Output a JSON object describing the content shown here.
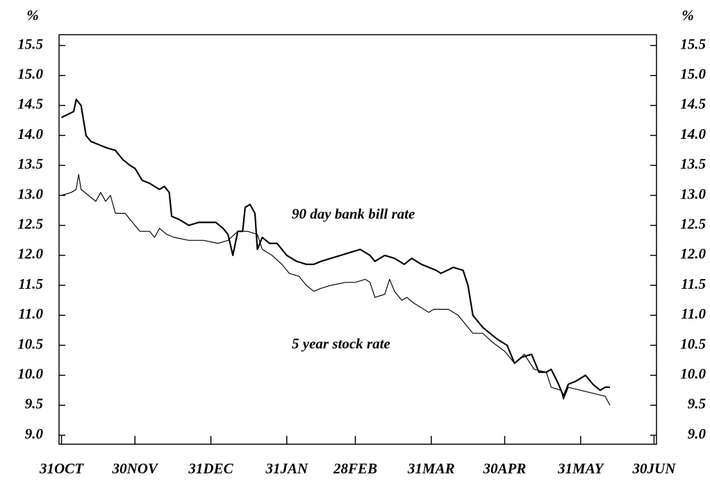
{
  "chart_data": {
    "type": "line",
    "y_unit_left": "%",
    "y_unit_right": "%",
    "annotations": [
      "90 day bank bill rate",
      "5 year stock rate"
    ],
    "xlim": [
      -1,
      243
    ],
    "xticks": [
      {
        "value": 0,
        "label": "31OCT"
      },
      {
        "value": 30,
        "label": "30NOV"
      },
      {
        "value": 61,
        "label": "31DEC"
      },
      {
        "value": 92,
        "label": "31JAN"
      },
      {
        "value": 120,
        "label": "28FEB"
      },
      {
        "value": 151,
        "label": "31MAR"
      },
      {
        "value": 181,
        "label": "30APR"
      },
      {
        "value": 212,
        "label": "31MAY"
      },
      {
        "value": 242,
        "label": "30JUN"
      }
    ],
    "ylim": [
      8.85,
      15.68
    ],
    "yticks": [
      {
        "value": 9,
        "label": "9.0"
      },
      9.5,
      {
        "value": 10,
        "label": "10.0"
      },
      10.5,
      {
        "value": 11,
        "label": "11.0"
      },
      11.5,
      {
        "value": 12,
        "label": "12.0"
      },
      12.5,
      {
        "value": 13,
        "label": "13.0"
      },
      13.5,
      {
        "value": 14,
        "label": "14.0"
      },
      14.5,
      {
        "value": 15,
        "label": "15.0"
      },
      15.5
    ],
    "y2lim": [
      8.85,
      15.68
    ],
    "y2ticks": [
      {
        "value": 9,
        "label": "9.0"
      },
      9.5,
      {
        "value": 10,
        "label": "10.0"
      },
      10.5,
      {
        "value": 11,
        "label": "11.0"
      },
      11.5,
      {
        "value": 12,
        "label": "12.0"
      },
      12.5,
      {
        "value": 13,
        "label": "13.0"
      },
      13.5,
      {
        "value": 14,
        "label": "14.0"
      },
      14.5,
      {
        "value": 15,
        "label": "15.0"
      },
      15.5
    ],
    "series": [
      {
        "color": "#000",
        "width": 2.2,
        "x": [
          0,
          5,
          6,
          8,
          10,
          12,
          15,
          18,
          22,
          25,
          28,
          30,
          33,
          36,
          40,
          42,
          44,
          45,
          48,
          52,
          56,
          60,
          63,
          66,
          68,
          70,
          72,
          74,
          75,
          77,
          79,
          80,
          82,
          85,
          88,
          92,
          96,
          100,
          103,
          106,
          110,
          114,
          118,
          122,
          126,
          128,
          132,
          136,
          140,
          143,
          147,
          150,
          153,
          155,
          160,
          164,
          166,
          168,
          172,
          175,
          178,
          182,
          185,
          188,
          192,
          195,
          198,
          200,
          203,
          205,
          207,
          210,
          214,
          217,
          220,
          222,
          224
        ],
        "values": [
          14.3,
          14.4,
          14.6,
          14.5,
          14.0,
          13.9,
          13.85,
          13.8,
          13.75,
          13.6,
          13.5,
          13.45,
          13.25,
          13.2,
          13.1,
          13.15,
          13.05,
          12.65,
          12.6,
          12.5,
          12.55,
          12.55,
          12.55,
          12.45,
          12.35,
          12.0,
          12.4,
          12.4,
          12.8,
          12.85,
          12.7,
          12.1,
          12.3,
          12.2,
          12.2,
          12.0,
          11.9,
          11.85,
          11.85,
          11.9,
          11.95,
          12.0,
          12.05,
          12.1,
          12.0,
          11.9,
          12.0,
          11.95,
          11.85,
          11.95,
          11.85,
          11.8,
          11.75,
          11.7,
          11.8,
          11.75,
          11.5,
          11.0,
          10.8,
          10.7,
          10.6,
          10.5,
          10.2,
          10.3,
          10.35,
          10.05,
          10.05,
          10.1,
          9.85,
          9.65,
          9.85,
          9.9,
          10.0,
          9.85,
          9.75,
          9.8,
          9.8
        ]
      },
      {
        "color": "#000",
        "width": 1.2,
        "axis": "y2",
        "x": [
          0,
          4,
          6,
          7,
          8,
          11,
          14,
          16,
          18,
          20,
          22,
          26,
          28,
          32,
          36,
          38,
          40,
          43,
          46,
          52,
          58,
          64,
          68,
          72,
          76,
          80,
          82,
          86,
          90,
          93,
          97,
          100,
          103,
          106,
          110,
          116,
          120,
          124,
          126,
          128,
          132,
          134,
          136,
          139,
          141,
          144,
          148,
          150,
          152,
          158,
          162,
          166,
          168,
          172,
          176,
          181,
          185,
          189,
          193,
          198,
          200,
          204,
          205,
          207,
          212,
          217,
          222,
          224
        ],
        "values": [
          13.0,
          13.05,
          13.1,
          13.35,
          13.1,
          13.0,
          12.9,
          13.05,
          12.9,
          13.0,
          12.7,
          12.7,
          12.6,
          12.4,
          12.4,
          12.3,
          12.45,
          12.35,
          12.3,
          12.25,
          12.25,
          12.2,
          12.25,
          12.4,
          12.4,
          12.35,
          12.1,
          12.0,
          11.85,
          11.7,
          11.65,
          11.5,
          11.4,
          11.45,
          11.5,
          11.55,
          11.55,
          11.6,
          11.55,
          11.3,
          11.35,
          11.6,
          11.4,
          11.25,
          11.3,
          11.2,
          11.1,
          11.05,
          11.1,
          11.1,
          11.0,
          10.8,
          10.7,
          10.7,
          10.55,
          10.4,
          10.2,
          10.35,
          10.1,
          10.05,
          9.8,
          9.75,
          9.6,
          9.8,
          9.75,
          9.7,
          9.65,
          9.5
        ]
      }
    ]
  }
}
